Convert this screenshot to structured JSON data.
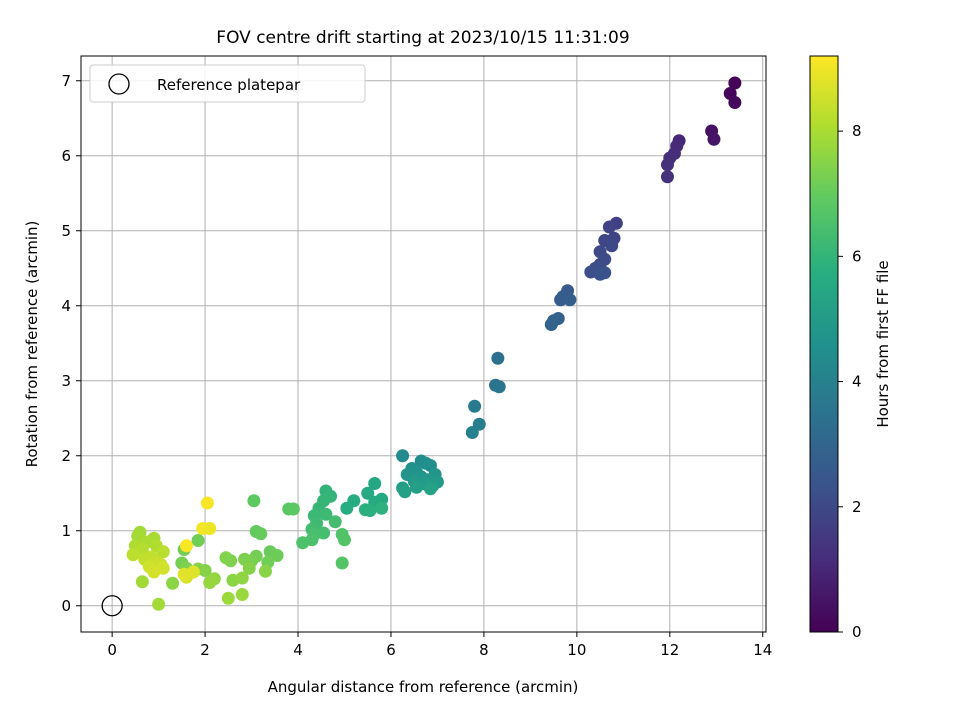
{
  "chart_data": {
    "type": "scatter",
    "title": "FOV centre drift starting at 2023/10/15 11:31:09",
    "xlabel": "Angular distance from reference (arcmin)",
    "ylabel": "Rotation from reference (arcmin)",
    "xlim": [
      -0.67,
      14.07
    ],
    "ylim": [
      -0.35,
      7.33
    ],
    "xticks": [
      "0",
      "2",
      "4",
      "6",
      "8",
      "10",
      "12",
      "14"
    ],
    "yticks": [
      "0",
      "1",
      "2",
      "3",
      "4",
      "5",
      "6",
      "7"
    ],
    "grid": true,
    "legend": {
      "location": "upper-left",
      "entries": [
        "Reference platepar"
      ]
    },
    "reference_point": {
      "x": 0,
      "y": 0
    },
    "colorbar": {
      "label": "Hours from first FF file",
      "colormap": "viridis",
      "range": [
        0,
        9.2
      ],
      "ticks": [
        "0",
        "2",
        "4",
        "6",
        "8"
      ]
    },
    "series": [
      {
        "points": [
          {
            "x": 13.4,
            "y": 6.97,
            "h": 0.05
          },
          {
            "x": 13.3,
            "y": 6.83,
            "h": 0.15
          },
          {
            "x": 13.4,
            "y": 6.71,
            "h": 0.25
          },
          {
            "x": 12.9,
            "y": 6.33,
            "h": 0.45
          },
          {
            "x": 12.95,
            "y": 6.22,
            "h": 0.55
          },
          {
            "x": 12.2,
            "y": 6.2,
            "h": 1.05
          },
          {
            "x": 12.15,
            "y": 6.13,
            "h": 1.1
          },
          {
            "x": 12.1,
            "y": 6.03,
            "h": 1.15
          },
          {
            "x": 12.0,
            "y": 5.97,
            "h": 1.2
          },
          {
            "x": 11.95,
            "y": 5.88,
            "h": 1.25
          },
          {
            "x": 11.95,
            "y": 5.72,
            "h": 1.3
          },
          {
            "x": 10.85,
            "y": 5.1,
            "h": 1.8
          },
          {
            "x": 10.7,
            "y": 5.05,
            "h": 1.85
          },
          {
            "x": 10.8,
            "y": 4.9,
            "h": 1.9
          },
          {
            "x": 10.6,
            "y": 4.87,
            "h": 1.95
          },
          {
            "x": 10.75,
            "y": 4.8,
            "h": 2.0
          },
          {
            "x": 10.5,
            "y": 4.72,
            "h": 2.05
          },
          {
            "x": 10.6,
            "y": 4.62,
            "h": 2.1
          },
          {
            "x": 10.5,
            "y": 4.55,
            "h": 2.15
          },
          {
            "x": 10.4,
            "y": 4.5,
            "h": 2.2
          },
          {
            "x": 10.3,
            "y": 4.45,
            "h": 2.25
          },
          {
            "x": 10.6,
            "y": 4.44,
            "h": 2.3
          },
          {
            "x": 10.5,
            "y": 4.42,
            "h": 2.35
          },
          {
            "x": 9.8,
            "y": 4.2,
            "h": 2.6
          },
          {
            "x": 9.7,
            "y": 4.12,
            "h": 2.65
          },
          {
            "x": 9.65,
            "y": 4.08,
            "h": 2.7
          },
          {
            "x": 9.85,
            "y": 4.08,
            "h": 2.75
          },
          {
            "x": 9.6,
            "y": 3.83,
            "h": 2.85
          },
          {
            "x": 9.5,
            "y": 3.8,
            "h": 2.9
          },
          {
            "x": 9.45,
            "y": 3.75,
            "h": 2.95
          },
          {
            "x": 8.3,
            "y": 3.3,
            "h": 3.4
          },
          {
            "x": 8.25,
            "y": 2.94,
            "h": 3.5
          },
          {
            "x": 8.33,
            "y": 2.92,
            "h": 3.55
          },
          {
            "x": 7.8,
            "y": 2.66,
            "h": 3.8
          },
          {
            "x": 7.9,
            "y": 2.42,
            "h": 3.9
          },
          {
            "x": 7.75,
            "y": 2.31,
            "h": 4.0
          },
          {
            "x": 6.25,
            "y": 2.0,
            "h": 4.4
          },
          {
            "x": 6.65,
            "y": 1.93,
            "h": 4.5
          },
          {
            "x": 6.75,
            "y": 1.9,
            "h": 4.55
          },
          {
            "x": 6.85,
            "y": 1.87,
            "h": 4.6
          },
          {
            "x": 6.45,
            "y": 1.83,
            "h": 4.65
          },
          {
            "x": 6.55,
            "y": 1.78,
            "h": 4.7
          },
          {
            "x": 6.35,
            "y": 1.75,
            "h": 4.75
          },
          {
            "x": 6.95,
            "y": 1.75,
            "h": 4.8
          },
          {
            "x": 6.65,
            "y": 1.72,
            "h": 4.85
          },
          {
            "x": 6.8,
            "y": 1.68,
            "h": 4.9
          },
          {
            "x": 6.5,
            "y": 1.66,
            "h": 4.95
          },
          {
            "x": 7.0,
            "y": 1.65,
            "h": 5.0
          },
          {
            "x": 6.75,
            "y": 1.62,
            "h": 5.05
          },
          {
            "x": 6.9,
            "y": 1.6,
            "h": 5.1
          },
          {
            "x": 6.55,
            "y": 1.58,
            "h": 5.15
          },
          {
            "x": 6.25,
            "y": 1.57,
            "h": 5.2
          },
          {
            "x": 6.3,
            "y": 1.52,
            "h": 5.25
          },
          {
            "x": 6.85,
            "y": 1.56,
            "h": 5.3
          },
          {
            "x": 5.65,
            "y": 1.63,
            "h": 5.5
          },
          {
            "x": 5.5,
            "y": 1.5,
            "h": 5.55
          },
          {
            "x": 5.8,
            "y": 1.42,
            "h": 5.6
          },
          {
            "x": 5.65,
            "y": 1.38,
            "h": 5.65
          },
          {
            "x": 5.2,
            "y": 1.4,
            "h": 5.7
          },
          {
            "x": 5.05,
            "y": 1.3,
            "h": 5.75
          },
          {
            "x": 5.55,
            "y": 1.27,
            "h": 5.8
          },
          {
            "x": 5.45,
            "y": 1.28,
            "h": 5.85
          },
          {
            "x": 5.8,
            "y": 1.3,
            "h": 5.9
          },
          {
            "x": 4.6,
            "y": 1.53,
            "h": 6.0
          },
          {
            "x": 4.7,
            "y": 1.46,
            "h": 6.05
          },
          {
            "x": 4.55,
            "y": 1.4,
            "h": 6.1
          },
          {
            "x": 4.45,
            "y": 1.3,
            "h": 6.15
          },
          {
            "x": 4.35,
            "y": 1.2,
            "h": 6.2
          },
          {
            "x": 4.6,
            "y": 1.22,
            "h": 6.25
          },
          {
            "x": 4.4,
            "y": 1.1,
            "h": 6.3
          },
          {
            "x": 4.3,
            "y": 1.02,
            "h": 6.35
          },
          {
            "x": 4.8,
            "y": 1.12,
            "h": 6.4
          },
          {
            "x": 4.55,
            "y": 0.97,
            "h": 6.45
          },
          {
            "x": 4.35,
            "y": 0.95,
            "h": 6.5
          },
          {
            "x": 4.3,
            "y": 0.88,
            "h": 6.55
          },
          {
            "x": 4.1,
            "y": 0.84,
            "h": 6.6
          },
          {
            "x": 4.95,
            "y": 0.95,
            "h": 6.65
          },
          {
            "x": 5.0,
            "y": 0.88,
            "h": 6.7
          },
          {
            "x": 4.95,
            "y": 0.57,
            "h": 6.75
          },
          {
            "x": 3.8,
            "y": 1.29,
            "h": 6.85
          },
          {
            "x": 3.9,
            "y": 1.29,
            "h": 6.9
          },
          {
            "x": 3.05,
            "y": 1.4,
            "h": 6.95
          },
          {
            "x": 3.1,
            "y": 0.99,
            "h": 7.0
          },
          {
            "x": 3.2,
            "y": 0.96,
            "h": 7.05
          },
          {
            "x": 3.4,
            "y": 0.72,
            "h": 7.1
          },
          {
            "x": 3.55,
            "y": 0.67,
            "h": 7.15
          },
          {
            "x": 3.35,
            "y": 0.58,
            "h": 7.2
          },
          {
            "x": 3.1,
            "y": 0.66,
            "h": 7.25
          },
          {
            "x": 3.0,
            "y": 0.6,
            "h": 7.3
          },
          {
            "x": 2.85,
            "y": 0.62,
            "h": 7.35
          },
          {
            "x": 2.55,
            "y": 0.6,
            "h": 7.4
          },
          {
            "x": 2.45,
            "y": 0.64,
            "h": 7.45
          },
          {
            "x": 2.95,
            "y": 0.5,
            "h": 7.5
          },
          {
            "x": 3.3,
            "y": 0.46,
            "h": 7.55
          },
          {
            "x": 2.6,
            "y": 0.34,
            "h": 7.6
          },
          {
            "x": 2.8,
            "y": 0.37,
            "h": 7.65
          },
          {
            "x": 2.2,
            "y": 0.36,
            "h": 7.7
          },
          {
            "x": 2.1,
            "y": 0.31,
            "h": 7.75
          },
          {
            "x": 2.8,
            "y": 0.15,
            "h": 7.8
          },
          {
            "x": 2.5,
            "y": 0.1,
            "h": 7.85
          },
          {
            "x": 1.85,
            "y": 0.87,
            "h": 7.2
          },
          {
            "x": 1.55,
            "y": 0.75,
            "h": 7.25
          },
          {
            "x": 1.5,
            "y": 0.57,
            "h": 7.3
          },
          {
            "x": 1.6,
            "y": 0.5,
            "h": 7.4
          },
          {
            "x": 1.85,
            "y": 0.49,
            "h": 7.45
          },
          {
            "x": 2.0,
            "y": 0.47,
            "h": 7.5
          },
          {
            "x": 1.3,
            "y": 0.3,
            "h": 7.6
          },
          {
            "x": 0.6,
            "y": 0.98,
            "h": 7.9
          },
          {
            "x": 0.55,
            "y": 0.93,
            "h": 7.95
          },
          {
            "x": 0.9,
            "y": 0.9,
            "h": 8.0
          },
          {
            "x": 0.75,
            "y": 0.85,
            "h": 8.05
          },
          {
            "x": 0.5,
            "y": 0.8,
            "h": 8.1
          },
          {
            "x": 0.95,
            "y": 0.8,
            "h": 8.15
          },
          {
            "x": 0.65,
            "y": 0.75,
            "h": 8.2
          },
          {
            "x": 1.1,
            "y": 0.72,
            "h": 8.25
          },
          {
            "x": 0.45,
            "y": 0.68,
            "h": 8.3
          },
          {
            "x": 0.85,
            "y": 0.65,
            "h": 8.35
          },
          {
            "x": 0.7,
            "y": 0.62,
            "h": 8.4
          },
          {
            "x": 0.95,
            "y": 0.58,
            "h": 8.45
          },
          {
            "x": 1.05,
            "y": 0.55,
            "h": 8.5
          },
          {
            "x": 0.8,
            "y": 0.52,
            "h": 8.55
          },
          {
            "x": 1.1,
            "y": 0.5,
            "h": 8.6
          },
          {
            "x": 0.9,
            "y": 0.45,
            "h": 8.65
          },
          {
            "x": 0.65,
            "y": 0.32,
            "h": 7.9
          },
          {
            "x": 1.0,
            "y": 0.02,
            "h": 7.95
          },
          {
            "x": 1.6,
            "y": 0.38,
            "h": 8.7
          },
          {
            "x": 1.75,
            "y": 0.45,
            "h": 8.75
          },
          {
            "x": 1.55,
            "y": 0.42,
            "h": 8.8
          },
          {
            "x": 2.05,
            "y": 1.37,
            "h": 9.1
          },
          {
            "x": 1.95,
            "y": 1.03,
            "h": 9.05
          },
          {
            "x": 2.1,
            "y": 1.03,
            "h": 9.0
          },
          {
            "x": 1.6,
            "y": 0.8,
            "h": 9.15
          }
        ]
      }
    ]
  }
}
